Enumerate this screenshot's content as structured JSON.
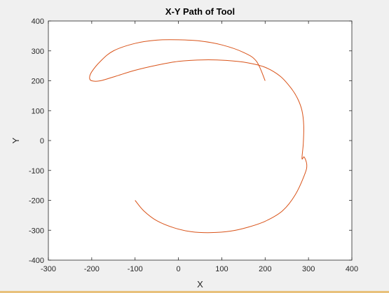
{
  "chart_data": {
    "type": "line",
    "title": "X-Y Path of Tool",
    "xlabel": "X",
    "ylabel": "Y",
    "xlim": [
      -300,
      400
    ],
    "ylim": [
      -400,
      400
    ],
    "xticks": [
      -300,
      -200,
      -100,
      0,
      100,
      200,
      300,
      400
    ],
    "yticks": [
      -400,
      -300,
      -200,
      -100,
      0,
      100,
      200,
      300,
      400
    ],
    "grid": false,
    "line_color": "#d95319",
    "series": [
      {
        "x": [
          -100,
          -80,
          -50,
          -10,
          30,
          75,
          120,
          160,
          200,
          240,
          270,
          292,
          296,
          290,
          285,
          288,
          289,
          285,
          275,
          260,
          235,
          200,
          160,
          110,
          60,
          0,
          -50,
          -100,
          -145,
          -180,
          -200,
          -205,
          -200,
          -180,
          -150,
          -100,
          -50,
          0,
          50,
          100,
          150,
          180,
          200
        ],
        "y": [
          -200,
          -235,
          -268,
          -292,
          -305,
          -308,
          -303,
          -290,
          -270,
          -235,
          -180,
          -110,
          -80,
          -55,
          -60,
          -10,
          50,
          100,
          140,
          175,
          215,
          245,
          260,
          268,
          270,
          265,
          252,
          235,
          215,
          200,
          200,
          210,
          230,
          265,
          300,
          325,
          336,
          337,
          333,
          320,
          295,
          265,
          200
        ]
      }
    ]
  }
}
